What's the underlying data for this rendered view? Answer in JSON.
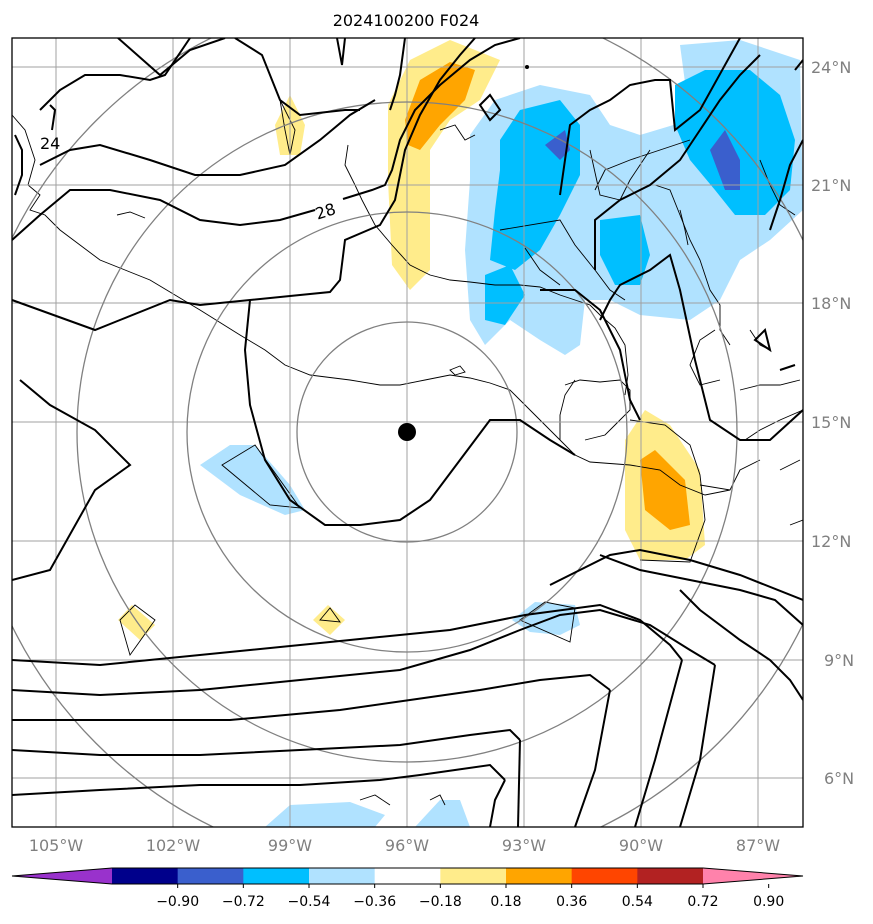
{
  "title": "2024100200 F024",
  "map": {
    "lat_ticks": [
      {
        "value": 24,
        "label": "24°N"
      },
      {
        "value": 21,
        "label": "21°N"
      },
      {
        "value": 18,
        "label": "18°N"
      },
      {
        "value": 15,
        "label": "15°N"
      },
      {
        "value": 12,
        "label": "12°N"
      },
      {
        "value": 9,
        "label": "9°N"
      },
      {
        "value": 6,
        "label": "6°N"
      }
    ],
    "lon_ticks": [
      {
        "value": -105,
        "label": "105°W"
      },
      {
        "value": -102,
        "label": "102°W"
      },
      {
        "value": -99,
        "label": "99°W"
      },
      {
        "value": -96,
        "label": "96°W"
      },
      {
        "value": -93,
        "label": "93°W"
      },
      {
        "value": -90,
        "label": "90°W"
      },
      {
        "value": -87,
        "label": "87°W"
      }
    ],
    "center": {
      "lon": -96.0,
      "lat": 14.75
    },
    "contour_labels": [
      {
        "text": "24",
        "lon": -105.0,
        "lat": 22.0
      },
      {
        "text": "28",
        "lon": -97.9,
        "lat": 20.5
      }
    ]
  },
  "colorbar": {
    "colors": [
      "#9932cc",
      "#00008b",
      "#3a5fcd",
      "#00bfff",
      "#b0e2ff",
      "#ffffff",
      "#ffec8b",
      "#ffa500",
      "#ff4500",
      "#b22222",
      "#ff82ab"
    ],
    "tick_labels": [
      "−0.90",
      "−0.72",
      "−0.54",
      "−0.36",
      "−0.18",
      "0.18",
      "0.36",
      "0.54",
      "0.72",
      "0.90"
    ]
  }
}
